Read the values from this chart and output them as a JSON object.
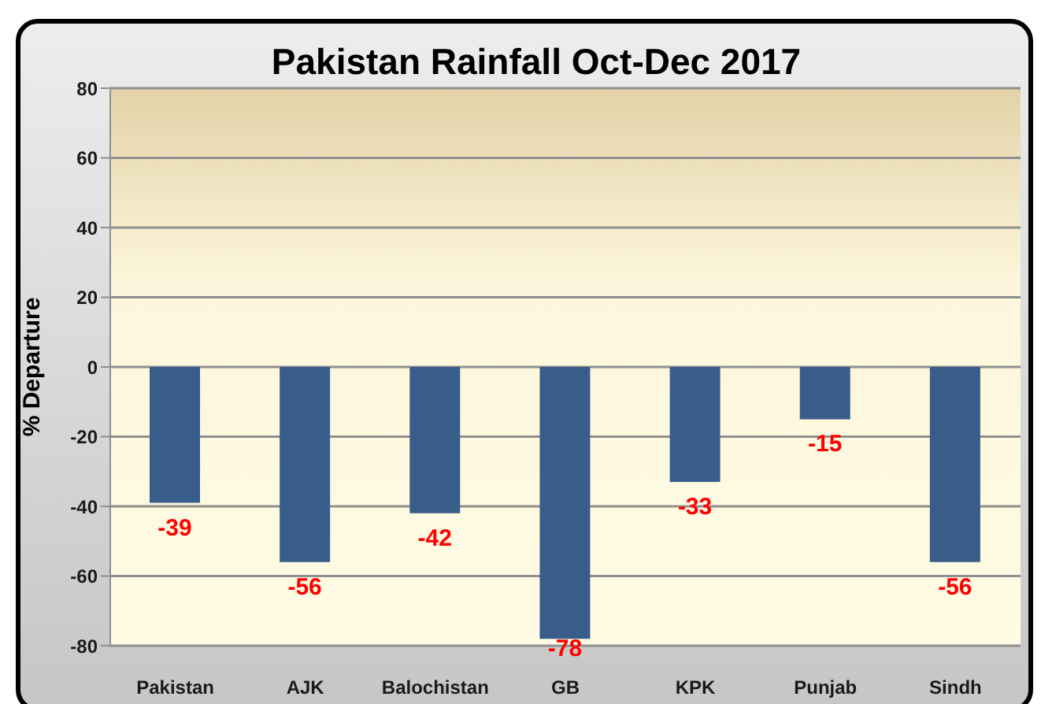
{
  "chart_data": {
    "type": "bar",
    "title": "Pakistan Rainfall Oct-Dec 2017",
    "ylabel": "% Departure",
    "categories": [
      "Pakistan",
      "AJK",
      "Balochistan",
      "GB",
      "KPK",
      "Punjab",
      "Sindh"
    ],
    "values": [
      -39,
      -56,
      -42,
      -78,
      -33,
      -15,
      -56
    ],
    "color": "#385d8a",
    "ylim": [
      -80,
      80
    ],
    "yticks": [
      -80,
      -60,
      -40,
      -20,
      0,
      20,
      40,
      60,
      80
    ],
    "grid": "y",
    "data_labels": true
  }
}
